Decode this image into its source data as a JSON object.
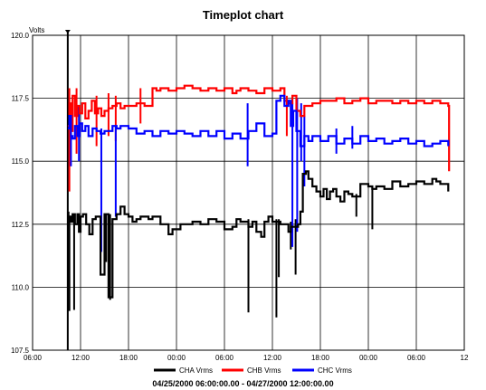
{
  "chart_data": {
    "type": "line",
    "title": "Timeplot chart",
    "ylabel": "Volts",
    "xlabel": "04/25/2000 06:00:00.00 - 04/27/2000 12:00:00.00",
    "ylim": [
      107.5,
      120.0
    ],
    "xlim_hours": [
      0,
      54
    ],
    "y_ticks": [
      "107.5",
      "110.0",
      "112.5",
      "115.0",
      "117.5",
      "120.0"
    ],
    "x_ticks": [
      "06:00",
      "12:00",
      "18:00",
      "00:00",
      "06:00",
      "12:00",
      "18:00",
      "00:00",
      "06:00",
      "12"
    ],
    "grid": true,
    "legend_position": "bottom",
    "series": [
      {
        "name": "CHA Vrms",
        "color": "#000000",
        "x": [
          4.4,
          4.6,
          4.8,
          5.0,
          5.3,
          5.6,
          5.8,
          6.0,
          6.3,
          6.7,
          7.1,
          7.5,
          7.9,
          8.5,
          9.0,
          9.5,
          10.0,
          10.5,
          11.0,
          11.5,
          12.0,
          12.5,
          13.0,
          13.5,
          14.0,
          14.5,
          15.0,
          16.0,
          17.0,
          17.5,
          18.0,
          18.5,
          19.0,
          20.0,
          20.5,
          21.0,
          22.0,
          23.0,
          24.0,
          25.0,
          25.5,
          26.0,
          27.0,
          27.5,
          28.0,
          28.6,
          29.0,
          29.5,
          30.0,
          31.0,
          31.5,
          32.0,
          32.3,
          32.8,
          33.2,
          33.5,
          33.8,
          34.2,
          34.5,
          35.0,
          35.5,
          36.0,
          36.4,
          36.8,
          37.2,
          37.6,
          38.0,
          38.5,
          39.0,
          39.5,
          40.0,
          41.0,
          42.0,
          42.5,
          43.0,
          44.0,
          45.0,
          46.0,
          47.0,
          48.0,
          49.0,
          50.0,
          50.5,
          51.0,
          52.0
        ],
        "y": [
          109.1,
          112.8,
          112.6,
          112.9,
          112.5,
          112.9,
          112.2,
          112.8,
          112.9,
          112.5,
          112.1,
          112.7,
          112.8,
          110.5,
          112.9,
          109.6,
          112.7,
          112.9,
          113.2,
          112.9,
          112.8,
          112.6,
          112.7,
          112.8,
          112.8,
          112.7,
          112.8,
          112.5,
          112.1,
          112.3,
          112.3,
          112.5,
          112.5,
          112.6,
          112.6,
          112.5,
          112.7,
          112.6,
          112.3,
          112.4,
          112.7,
          112.6,
          112.4,
          112.6,
          112.2,
          112.0,
          112.6,
          112.8,
          112.6,
          112.5,
          112.5,
          112.2,
          112.4,
          112.4,
          112.5,
          113.0,
          114.5,
          114.6,
          114.3,
          114.0,
          113.8,
          113.6,
          113.9,
          113.5,
          113.8,
          113.9,
          113.6,
          113.4,
          113.8,
          113.7,
          113.6,
          114.1,
          114.0,
          113.9,
          114.0,
          113.9,
          114.2,
          114.0,
          114.1,
          114.2,
          114.1,
          114.3,
          114.2,
          114.1,
          113.8
        ]
      },
      {
        "name": "CHB Vrms",
        "color": "#ff0000",
        "x": [
          4.4,
          4.6,
          4.8,
          5.0,
          5.3,
          5.6,
          5.9,
          6.2,
          6.6,
          7.0,
          7.4,
          7.8,
          8.2,
          8.6,
          9.0,
          9.5,
          10.0,
          10.5,
          11.0,
          11.5,
          12.0,
          13.0,
          14.0,
          15.0,
          15.5,
          16.0,
          17.0,
          18.0,
          19.0,
          20.0,
          21.0,
          22.0,
          23.0,
          24.0,
          25.0,
          25.5,
          26.0,
          27.0,
          28.0,
          29.0,
          30.0,
          31.0,
          31.5,
          32.0,
          32.5,
          33.0,
          33.5,
          34.0,
          35.0,
          36.0,
          37.0,
          38.0,
          39.0,
          40.0,
          41.0,
          42.0,
          43.0,
          44.0,
          45.0,
          46.0,
          47.0,
          48.0,
          49.0,
          50.0,
          51.0,
          52.0,
          52.1
        ],
        "y": [
          116.4,
          117.3,
          116.2,
          117.6,
          116.8,
          117.2,
          116.9,
          117.3,
          116.7,
          117.0,
          117.4,
          116.9,
          117.1,
          116.8,
          117.0,
          117.1,
          117.2,
          117.3,
          117.1,
          117.2,
          117.2,
          117.3,
          117.2,
          117.9,
          117.8,
          117.9,
          117.8,
          117.9,
          118.0,
          117.9,
          117.8,
          117.9,
          117.8,
          117.9,
          117.7,
          117.8,
          117.9,
          117.8,
          117.7,
          117.9,
          117.8,
          117.9,
          117.4,
          117.3,
          117.6,
          117.0,
          116.8,
          117.2,
          117.3,
          117.4,
          117.4,
          117.5,
          117.3,
          117.4,
          117.5,
          117.3,
          117.4,
          117.4,
          117.3,
          117.4,
          117.3,
          117.4,
          117.3,
          117.4,
          117.3,
          117.2,
          114.6
        ]
      },
      {
        "name": "CHC Vrms",
        "color": "#0000ff",
        "x": [
          4.4,
          4.6,
          4.8,
          5.0,
          5.3,
          5.6,
          5.9,
          6.2,
          6.6,
          7.0,
          7.5,
          8.0,
          8.5,
          9.0,
          9.5,
          10.0,
          10.5,
          11.0,
          12.0,
          13.0,
          14.0,
          15.0,
          16.0,
          17.0,
          18.0,
          19.0,
          20.0,
          21.0,
          22.0,
          23.0,
          24.0,
          25.0,
          26.0,
          27.0,
          28.0,
          29.0,
          30.0,
          30.5,
          31.0,
          31.5,
          32.0,
          32.3,
          32.6,
          33.0,
          33.5,
          34.0,
          34.5,
          35.0,
          36.0,
          37.0,
          38.0,
          39.0,
          40.0,
          41.0,
          42.0,
          43.0,
          44.0,
          45.0,
          46.0,
          47.0,
          48.0,
          49.0,
          50.0,
          51.0,
          52.0
        ],
        "y": [
          116.3,
          116.8,
          116.0,
          115.9,
          116.4,
          116.0,
          116.5,
          116.2,
          116.4,
          116.0,
          116.3,
          116.2,
          116.1,
          116.2,
          116.2,
          116.4,
          116.3,
          116.4,
          116.3,
          116.1,
          116.2,
          116.0,
          116.2,
          116.1,
          116.2,
          116.1,
          116.0,
          116.2,
          116.0,
          116.2,
          115.9,
          116.1,
          115.9,
          116.2,
          116.5,
          116.0,
          116.1,
          117.4,
          117.6,
          117.2,
          117.4,
          116.4,
          117.0,
          116.2,
          115.6,
          116.0,
          115.8,
          116.0,
          115.8,
          116.0,
          115.7,
          115.9,
          115.7,
          116.0,
          115.8,
          115.9,
          115.7,
          115.8,
          115.9,
          115.7,
          115.8,
          115.6,
          115.7,
          115.8,
          115.6
        ]
      }
    ],
    "spikes": [
      {
        "series": 0,
        "x": 4.5,
        "low": 109.1,
        "high": 113.0
      },
      {
        "series": 0,
        "x": 5.2,
        "low": 109.1,
        "high": 112.9
      },
      {
        "series": 0,
        "x": 9.2,
        "low": 111.0,
        "high": 112.9
      },
      {
        "series": 0,
        "x": 9.7,
        "low": 109.5,
        "high": 112.9
      },
      {
        "series": 0,
        "x": 27.0,
        "low": 109.0,
        "high": 112.7
      },
      {
        "series": 0,
        "x": 30.5,
        "low": 108.8,
        "high": 112.7
      },
      {
        "series": 0,
        "x": 30.8,
        "low": 110.4,
        "high": 112.7
      },
      {
        "series": 0,
        "x": 32.3,
        "low": 111.5,
        "high": 112.6
      },
      {
        "series": 0,
        "x": 32.9,
        "low": 110.5,
        "high": 112.7
      },
      {
        "series": 0,
        "x": 42.5,
        "low": 112.3,
        "high": 114.0
      },
      {
        "series": 0,
        "x": 40.5,
        "low": 112.8,
        "high": 113.7
      },
      {
        "series": 1,
        "x": 4.6,
        "low": 113.8,
        "high": 117.9
      },
      {
        "series": 1,
        "x": 5.5,
        "low": 115.3,
        "high": 117.9
      },
      {
        "series": 1,
        "x": 8.0,
        "low": 115.6,
        "high": 117.6
      },
      {
        "series": 1,
        "x": 9.5,
        "low": 116.0,
        "high": 117.7
      },
      {
        "series": 1,
        "x": 10.4,
        "low": 115.8,
        "high": 117.6
      },
      {
        "series": 1,
        "x": 13.5,
        "low": 116.5,
        "high": 117.9
      },
      {
        "series": 1,
        "x": 31.8,
        "low": 116.0,
        "high": 117.6
      },
      {
        "series": 2,
        "x": 4.8,
        "low": 114.8,
        "high": 117.0
      },
      {
        "series": 2,
        "x": 5.8,
        "low": 115.0,
        "high": 117.2
      },
      {
        "series": 2,
        "x": 8.6,
        "low": 111.4,
        "high": 116.3
      },
      {
        "series": 2,
        "x": 10.4,
        "low": 112.8,
        "high": 116.4
      },
      {
        "series": 2,
        "x": 26.9,
        "low": 114.8,
        "high": 117.3
      },
      {
        "series": 2,
        "x": 32.5,
        "low": 111.6,
        "high": 117.3
      },
      {
        "series": 2,
        "x": 33.1,
        "low": 112.2,
        "high": 117.5
      },
      {
        "series": 2,
        "x": 33.6,
        "low": 115.0,
        "high": 117.3
      },
      {
        "series": 2,
        "x": 34.0,
        "low": 114.0,
        "high": 116.8
      },
      {
        "series": 2,
        "x": 38.0,
        "low": 115.3,
        "high": 116.3
      },
      {
        "series": 2,
        "x": 40.0,
        "low": 115.5,
        "high": 116.4
      }
    ]
  },
  "colors": {
    "cha": "#000000",
    "chb": "#ff0000",
    "chc": "#0000ff",
    "grid": "#000000"
  }
}
